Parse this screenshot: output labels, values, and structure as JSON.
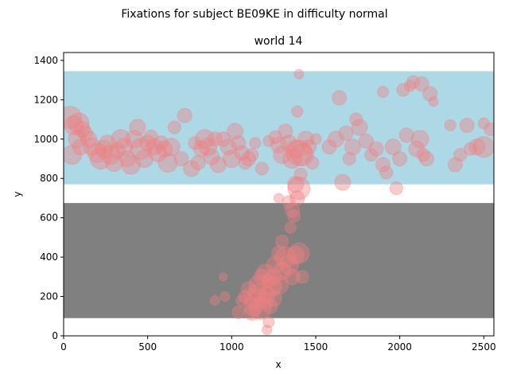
{
  "figure": {
    "suptitle": "Fixations for subject BE09KE in difficulty normal"
  },
  "chart_data": {
    "type": "scatter",
    "title": "world 14",
    "xlabel": "x",
    "ylabel": "y",
    "xlim": [
      0,
      2560
    ],
    "ylim": [
      0,
      1440
    ],
    "xticks": [
      0,
      500,
      1000,
      1500,
      2000,
      2500
    ],
    "yticks": [
      0,
      200,
      400,
      600,
      800,
      1000,
      1200,
      1400
    ],
    "grid": false,
    "legend": "none",
    "regions": [
      {
        "name": "upper band",
        "color": "#add8e6",
        "x": [
          0,
          2560
        ],
        "y": [
          770,
          1345
        ]
      },
      {
        "name": "lower band",
        "color": "#808080",
        "x": [
          0,
          2560
        ],
        "y": [
          90,
          675
        ]
      }
    ],
    "marker_color": "#f08080",
    "marker_alpha": 0.4,
    "points": [
      [
        40,
        1110,
        14
      ],
      [
        60,
        1070,
        12
      ],
      [
        90,
        1080,
        13
      ],
      [
        110,
        1050,
        10
      ],
      [
        130,
        1030,
        9
      ],
      [
        80,
        1000,
        11
      ],
      [
        50,
        920,
        12
      ],
      [
        100,
        960,
        10
      ],
      [
        150,
        1000,
        10
      ],
      [
        170,
        960,
        11
      ],
      [
        200,
        930,
        12
      ],
      [
        220,
        900,
        13
      ],
      [
        240,
        950,
        11
      ],
      [
        260,
        980,
        10
      ],
      [
        280,
        920,
        12
      ],
      [
        300,
        880,
        11
      ],
      [
        320,
        940,
        10
      ],
      [
        340,
        1000,
        12
      ],
      [
        360,
        960,
        11
      ],
      [
        380,
        900,
        10
      ],
      [
        400,
        870,
        12
      ],
      [
        420,
        1000,
        11
      ],
      [
        440,
        1060,
        10
      ],
      [
        460,
        950,
        13
      ],
      [
        480,
        900,
        11
      ],
      [
        500,
        980,
        10
      ],
      [
        520,
        1010,
        9
      ],
      [
        540,
        960,
        10
      ],
      [
        560,
        930,
        11
      ],
      [
        580,
        980,
        9
      ],
      [
        600,
        950,
        10
      ],
      [
        620,
        880,
        12
      ],
      [
        640,
        960,
        11
      ],
      [
        660,
        1060,
        8
      ],
      [
        700,
        900,
        9
      ],
      [
        720,
        1120,
        9
      ],
      [
        760,
        850,
        10
      ],
      [
        780,
        980,
        8
      ],
      [
        800,
        880,
        9
      ],
      [
        820,
        950,
        10
      ],
      [
        840,
        1000,
        12
      ],
      [
        860,
        960,
        11
      ],
      [
        880,
        910,
        10
      ],
      [
        900,
        1000,
        9
      ],
      [
        920,
        870,
        10
      ],
      [
        950,
        1000,
        9
      ],
      [
        980,
        960,
        10
      ],
      [
        1000,
        900,
        11
      ],
      [
        1020,
        1040,
        10
      ],
      [
        1040,
        980,
        9
      ],
      [
        1060,
        930,
        9
      ],
      [
        1080,
        880,
        8
      ],
      [
        1100,
        900,
        9
      ],
      [
        1120,
        920,
        8
      ],
      [
        1140,
        980,
        7
      ],
      [
        1180,
        850,
        8
      ],
      [
        1220,
        990,
        7
      ],
      [
        1260,
        1010,
        8
      ],
      [
        1280,
        970,
        10
      ],
      [
        1300,
        920,
        11
      ],
      [
        1320,
        1040,
        9
      ],
      [
        1340,
        980,
        10
      ],
      [
        1360,
        900,
        12
      ],
      [
        1380,
        950,
        11
      ],
      [
        1400,
        930,
        16
      ],
      [
        1420,
        920,
        14
      ],
      [
        1440,
        1000,
        10
      ],
      [
        1460,
        960,
        9
      ],
      [
        1480,
        880,
        8
      ],
      [
        1500,
        1000,
        7
      ],
      [
        1390,
        1140,
        7
      ],
      [
        1400,
        1330,
        6
      ],
      [
        1580,
        960,
        9
      ],
      [
        1620,
        1000,
        10
      ],
      [
        1640,
        1210,
        9
      ],
      [
        1660,
        780,
        10
      ],
      [
        1680,
        1030,
        9
      ],
      [
        1700,
        900,
        8
      ],
      [
        1720,
        960,
        10
      ],
      [
        1740,
        1100,
        8
      ],
      [
        1760,
        1060,
        10
      ],
      [
        1800,
        990,
        9
      ],
      [
        1830,
        920,
        8
      ],
      [
        1860,
        950,
        9
      ],
      [
        1900,
        1240,
        7
      ],
      [
        1900,
        870,
        9
      ],
      [
        1920,
        830,
        8
      ],
      [
        1960,
        960,
        10
      ],
      [
        1980,
        750,
        8
      ],
      [
        2000,
        900,
        9
      ],
      [
        2020,
        1250,
        8
      ],
      [
        2040,
        1020,
        9
      ],
      [
        2060,
        1270,
        7
      ],
      [
        2080,
        1290,
        8
      ],
      [
        2100,
        950,
        10
      ],
      [
        2120,
        1000,
        11
      ],
      [
        2130,
        1280,
        9
      ],
      [
        2140,
        920,
        8
      ],
      [
        2160,
        900,
        9
      ],
      [
        2180,
        1230,
        9
      ],
      [
        2200,
        1190,
        6
      ],
      [
        2300,
        1070,
        7
      ],
      [
        2330,
        870,
        9
      ],
      [
        2360,
        920,
        8
      ],
      [
        2400,
        1070,
        9
      ],
      [
        2420,
        950,
        8
      ],
      [
        2460,
        960,
        10
      ],
      [
        2500,
        960,
        13
      ],
      [
        2500,
        1080,
        7
      ],
      [
        2540,
        1050,
        8
      ],
      [
        1340,
        680,
        8
      ],
      [
        1360,
        640,
        9
      ],
      [
        1370,
        610,
        8
      ],
      [
        1380,
        770,
        10
      ],
      [
        1390,
        700,
        9
      ],
      [
        1400,
        750,
        14
      ],
      [
        1410,
        820,
        8
      ],
      [
        1350,
        550,
        7
      ],
      [
        1300,
        480,
        8
      ],
      [
        1280,
        420,
        9
      ],
      [
        1260,
        360,
        11
      ],
      [
        1250,
        300,
        10
      ],
      [
        1240,
        250,
        12
      ],
      [
        1220,
        280,
        9
      ],
      [
        1200,
        320,
        11
      ],
      [
        1180,
        300,
        10
      ],
      [
        1160,
        260,
        12
      ],
      [
        1150,
        220,
        11
      ],
      [
        1140,
        190,
        13
      ],
      [
        1130,
        150,
        12
      ],
      [
        1120,
        120,
        10
      ],
      [
        1170,
        140,
        14
      ],
      [
        1190,
        180,
        11
      ],
      [
        1210,
        210,
        10
      ],
      [
        1230,
        150,
        9
      ],
      [
        1250,
        190,
        10
      ],
      [
        1280,
        260,
        12
      ],
      [
        1300,
        330,
        11
      ],
      [
        1320,
        400,
        13
      ],
      [
        1340,
        360,
        12
      ],
      [
        1360,
        300,
        10
      ],
      [
        1380,
        410,
        11
      ],
      [
        1400,
        420,
        13
      ],
      [
        1420,
        300,
        8
      ],
      [
        1100,
        240,
        9
      ],
      [
        1080,
        200,
        8
      ],
      [
        1060,
        180,
        7
      ],
      [
        1040,
        120,
        8
      ],
      [
        1220,
        70,
        7
      ],
      [
        1210,
        30,
        6
      ],
      [
        900,
        180,
        6
      ],
      [
        960,
        200,
        6
      ],
      [
        950,
        300,
        5
      ],
      [
        1280,
        700,
        6
      ]
    ]
  }
}
